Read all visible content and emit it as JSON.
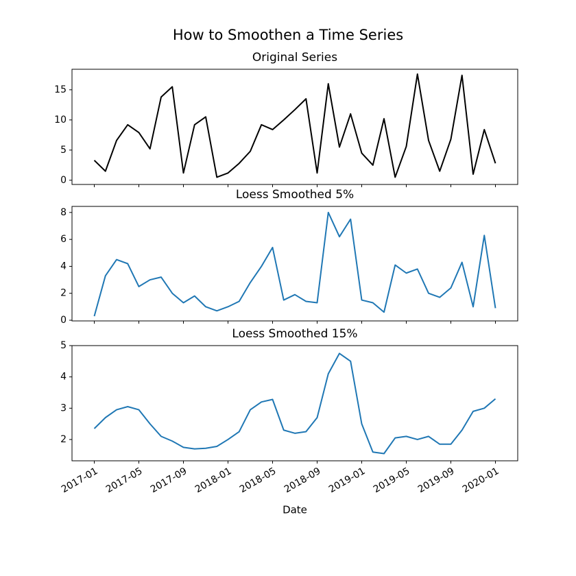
{
  "title": "How to Smoothen a Time Series",
  "chart_data": [
    {
      "type": "line",
      "title": "Original Series",
      "x": [
        "2017-01",
        "2017-02",
        "2017-03",
        "2017-04",
        "2017-05",
        "2017-06",
        "2017-07",
        "2017-08",
        "2017-09",
        "2017-10",
        "2017-11",
        "2017-12",
        "2018-01",
        "2018-02",
        "2018-03",
        "2018-04",
        "2018-05",
        "2018-06",
        "2018-07",
        "2018-08",
        "2018-09",
        "2018-10",
        "2018-11",
        "2018-12",
        "2019-01",
        "2019-02",
        "2019-03",
        "2019-04",
        "2019-05",
        "2019-06",
        "2019-07",
        "2019-08",
        "2019-09",
        "2019-10",
        "2019-11",
        "2019-12",
        "2020-01"
      ],
      "values": [
        3.3,
        1.5,
        6.6,
        9.2,
        7.9,
        5.2,
        13.8,
        15.5,
        1.2,
        9.2,
        10.5,
        0.5,
        1.2,
        2.8,
        4.8,
        9.2,
        8.4,
        10,
        11.7,
        13.5,
        1.2,
        16,
        5.5,
        11,
        4.5,
        2.5,
        10.2,
        0.5,
        5.6,
        17.6,
        6.6,
        1.5,
        6.8,
        17.4,
        1,
        8.4,
        2.8
      ],
      "color": "#000000",
      "xlim": [
        "2016-11",
        "2020-03"
      ],
      "ylim": [
        -0.7,
        18.4
      ],
      "yticks": [
        0,
        5,
        10,
        15
      ],
      "xticks": [
        "2017-01",
        "2017-05",
        "2017-09",
        "2018-01",
        "2018-05",
        "2018-09",
        "2019-01",
        "2019-05",
        "2019-09",
        "2020-01"
      ],
      "show_xtick_labels": false
    },
    {
      "type": "line",
      "title": "Loess Smoothed 5%",
      "x": [
        "2017-01",
        "2017-02",
        "2017-03",
        "2017-04",
        "2017-05",
        "2017-06",
        "2017-07",
        "2017-08",
        "2017-09",
        "2017-10",
        "2017-11",
        "2017-12",
        "2018-01",
        "2018-02",
        "2018-03",
        "2018-04",
        "2018-05",
        "2018-06",
        "2018-07",
        "2018-08",
        "2018-09",
        "2018-10",
        "2018-11",
        "2018-12",
        "2019-01",
        "2019-02",
        "2019-03",
        "2019-04",
        "2019-05",
        "2019-06",
        "2019-07",
        "2019-08",
        "2019-09",
        "2019-10",
        "2019-11",
        "2019-12",
        "2020-01"
      ],
      "values": [
        0.3,
        3.3,
        4.5,
        4.2,
        2.5,
        3.0,
        3.2,
        2.0,
        1.3,
        1.8,
        1.0,
        0.7,
        1.0,
        1.4,
        2.8,
        4.0,
        5.4,
        1.5,
        1.9,
        1.4,
        1.3,
        8.0,
        6.2,
        7.5,
        1.5,
        1.3,
        0.6,
        4.1,
        3.5,
        3.8,
        2.0,
        1.7,
        2.4,
        4.3,
        1.0,
        6.3,
        0.9
      ],
      "color": "#1f77b4",
      "xlim": [
        "2016-11",
        "2020-03"
      ],
      "ylim": [
        -0.05,
        8.45
      ],
      "yticks": [
        0,
        2,
        4,
        6,
        8
      ],
      "xticks": [
        "2017-01",
        "2017-05",
        "2017-09",
        "2018-01",
        "2018-05",
        "2018-09",
        "2019-01",
        "2019-05",
        "2019-09",
        "2020-01"
      ],
      "show_xtick_labels": false
    },
    {
      "type": "line",
      "title": "Loess Smoothed 15%",
      "xlabel": "Date",
      "x": [
        "2017-01",
        "2017-02",
        "2017-03",
        "2017-04",
        "2017-05",
        "2017-06",
        "2017-07",
        "2017-08",
        "2017-09",
        "2017-10",
        "2017-11",
        "2017-12",
        "2018-01",
        "2018-02",
        "2018-03",
        "2018-04",
        "2018-05",
        "2018-06",
        "2018-07",
        "2018-08",
        "2018-09",
        "2018-10",
        "2018-11",
        "2018-12",
        "2019-01",
        "2019-02",
        "2019-03",
        "2019-04",
        "2019-05",
        "2019-06",
        "2019-07",
        "2019-08",
        "2019-09",
        "2019-10",
        "2019-11",
        "2019-12",
        "2020-01"
      ],
      "values": [
        2.35,
        2.7,
        2.95,
        3.05,
        2.95,
        2.5,
        2.1,
        1.95,
        1.75,
        1.7,
        1.72,
        1.78,
        2.0,
        2.25,
        2.95,
        3.2,
        3.28,
        2.3,
        2.2,
        2.25,
        2.7,
        4.1,
        4.75,
        4.5,
        2.5,
        1.6,
        1.55,
        2.05,
        2.1,
        2.0,
        2.1,
        1.85,
        1.85,
        2.3,
        2.9,
        3.0,
        3.3
      ],
      "color": "#1f77b4",
      "xlim": [
        "2016-11",
        "2020-03"
      ],
      "ylim": [
        1.32,
        5
      ],
      "yticks": [
        2,
        3,
        4,
        5
      ],
      "xticks": [
        "2017-01",
        "2017-05",
        "2017-09",
        "2018-01",
        "2018-05",
        "2018-09",
        "2019-01",
        "2019-05",
        "2019-09",
        "2020-01"
      ],
      "show_xtick_labels": true
    }
  ]
}
